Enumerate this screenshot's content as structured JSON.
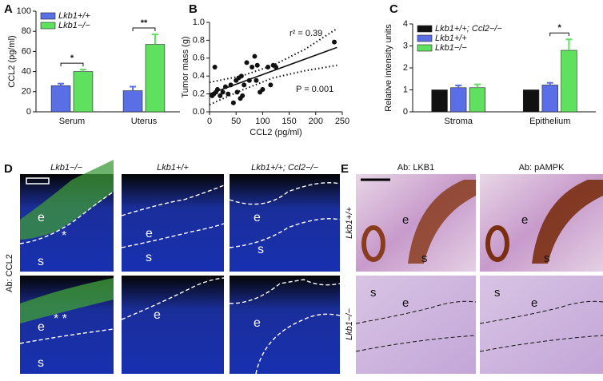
{
  "chart_data": [
    {
      "type": "bar",
      "label": "A",
      "ylabel": "CCL2 (pg/ml)",
      "categories": [
        "Serum",
        "Uterus"
      ],
      "series": [
        {
          "name": "Lkb1+/+",
          "color": "#5a6ee6",
          "values": [
            26,
            21
          ],
          "errors": [
            2,
            4
          ]
        },
        {
          "name": "Lkb1−/−",
          "color": "#5fe05f",
          "values": [
            40,
            67
          ],
          "errors": [
            2,
            10
          ]
        }
      ],
      "significance": [
        "*",
        "**"
      ],
      "ylim": [
        0,
        100
      ],
      "yticks": [
        0,
        20,
        40,
        60,
        80,
        100
      ]
    },
    {
      "type": "scatter",
      "label": "B",
      "xlabel": "CCL2 (pg/ml)",
      "ylabel": "Tumor mass (g)",
      "x": [
        5,
        8,
        10,
        12,
        15,
        20,
        25,
        30,
        35,
        40,
        45,
        50,
        52,
        55,
        58,
        60,
        62,
        65,
        70,
        75,
        80,
        85,
        88,
        90,
        95,
        100,
        110,
        115,
        120,
        125,
        235
      ],
      "y": [
        0.18,
        0.2,
        0.5,
        0.22,
        0.25,
        0.18,
        0.22,
        0.28,
        0.2,
        0.3,
        0.1,
        0.35,
        0.22,
        0.38,
        0.15,
        0.4,
        0.18,
        0.3,
        0.55,
        0.35,
        0.5,
        0.62,
        0.35,
        0.52,
        0.22,
        0.25,
        0.5,
        0.3,
        0.52,
        0.5,
        0.78
      ],
      "lines": [
        {
          "style": "solid",
          "x": [
            0,
            240
          ],
          "y": [
            0.2,
            0.72
          ]
        },
        {
          "style": "dotted",
          "x": [
            0,
            60,
            120,
            180,
            240
          ],
          "y": [
            0.33,
            0.4,
            0.52,
            0.7,
            0.93
          ]
        },
        {
          "style": "dotted",
          "x": [
            0,
            60,
            120,
            180,
            240
          ],
          "y": [
            0.08,
            0.24,
            0.38,
            0.46,
            0.52
          ]
        }
      ],
      "annotations": [
        "r² = 0.39",
        "P = 0.001"
      ],
      "xlim": [
        0,
        250
      ],
      "xticks": [
        0,
        50,
        100,
        150,
        200,
        250
      ],
      "ylim": [
        0,
        1
      ],
      "yticks": [
        {
          "value": 0,
          "label": "0.0"
        },
        0.2,
        0.4,
        0.6,
        0.8,
        {
          "value": 1,
          "label": "1.0"
        }
      ]
    },
    {
      "type": "bar",
      "label": "C",
      "ylabel": "Relative intensity units",
      "categories": [
        "Stroma",
        "Epithelium"
      ],
      "series": [
        {
          "name": "Lkb1+/+; Ccl2−/−",
          "color": "#111111",
          "values": [
            1,
            1
          ],
          "errors": [
            0,
            0
          ]
        },
        {
          "name": "Lkb1+/+",
          "color": "#5a6ee6",
          "values": [
            1.1,
            1.22
          ],
          "errors": [
            0.1,
            0.1
          ]
        },
        {
          "name": "Lkb1−/−",
          "color": "#5fe05f",
          "values": [
            1.1,
            2.8
          ],
          "errors": [
            0.15,
            0.5
          ]
        }
      ],
      "significance": [
        null,
        "*"
      ],
      "ylim": [
        0,
        4
      ],
      "yticks": [
        0,
        1,
        2,
        3,
        4
      ]
    }
  ],
  "panel_d": {
    "label": "D",
    "columns": [
      "Lkb1−/−",
      "Lkb1+/+",
      "Lkb1+/+; Ccl2−/−"
    ],
    "row_label": "Ab: CCL2",
    "images": [
      [
        "e",
        "*",
        "s"
      ],
      [
        "e",
        "s"
      ],
      [
        "e",
        "s"
      ],
      [
        "e",
        "* *",
        "s"
      ],
      [
        "e"
      ],
      [
        "e"
      ]
    ]
  },
  "panel_e": {
    "label": "E",
    "columns": [
      "Ab: LKB1",
      "Ab: pAMPK"
    ],
    "rows": [
      "Lkb1+/+",
      "Lkb1−/−"
    ],
    "images": [
      [
        "e",
        "s"
      ],
      [
        "e",
        "s"
      ],
      [
        "s",
        "e"
      ],
      [
        "s",
        "e"
      ]
    ]
  }
}
